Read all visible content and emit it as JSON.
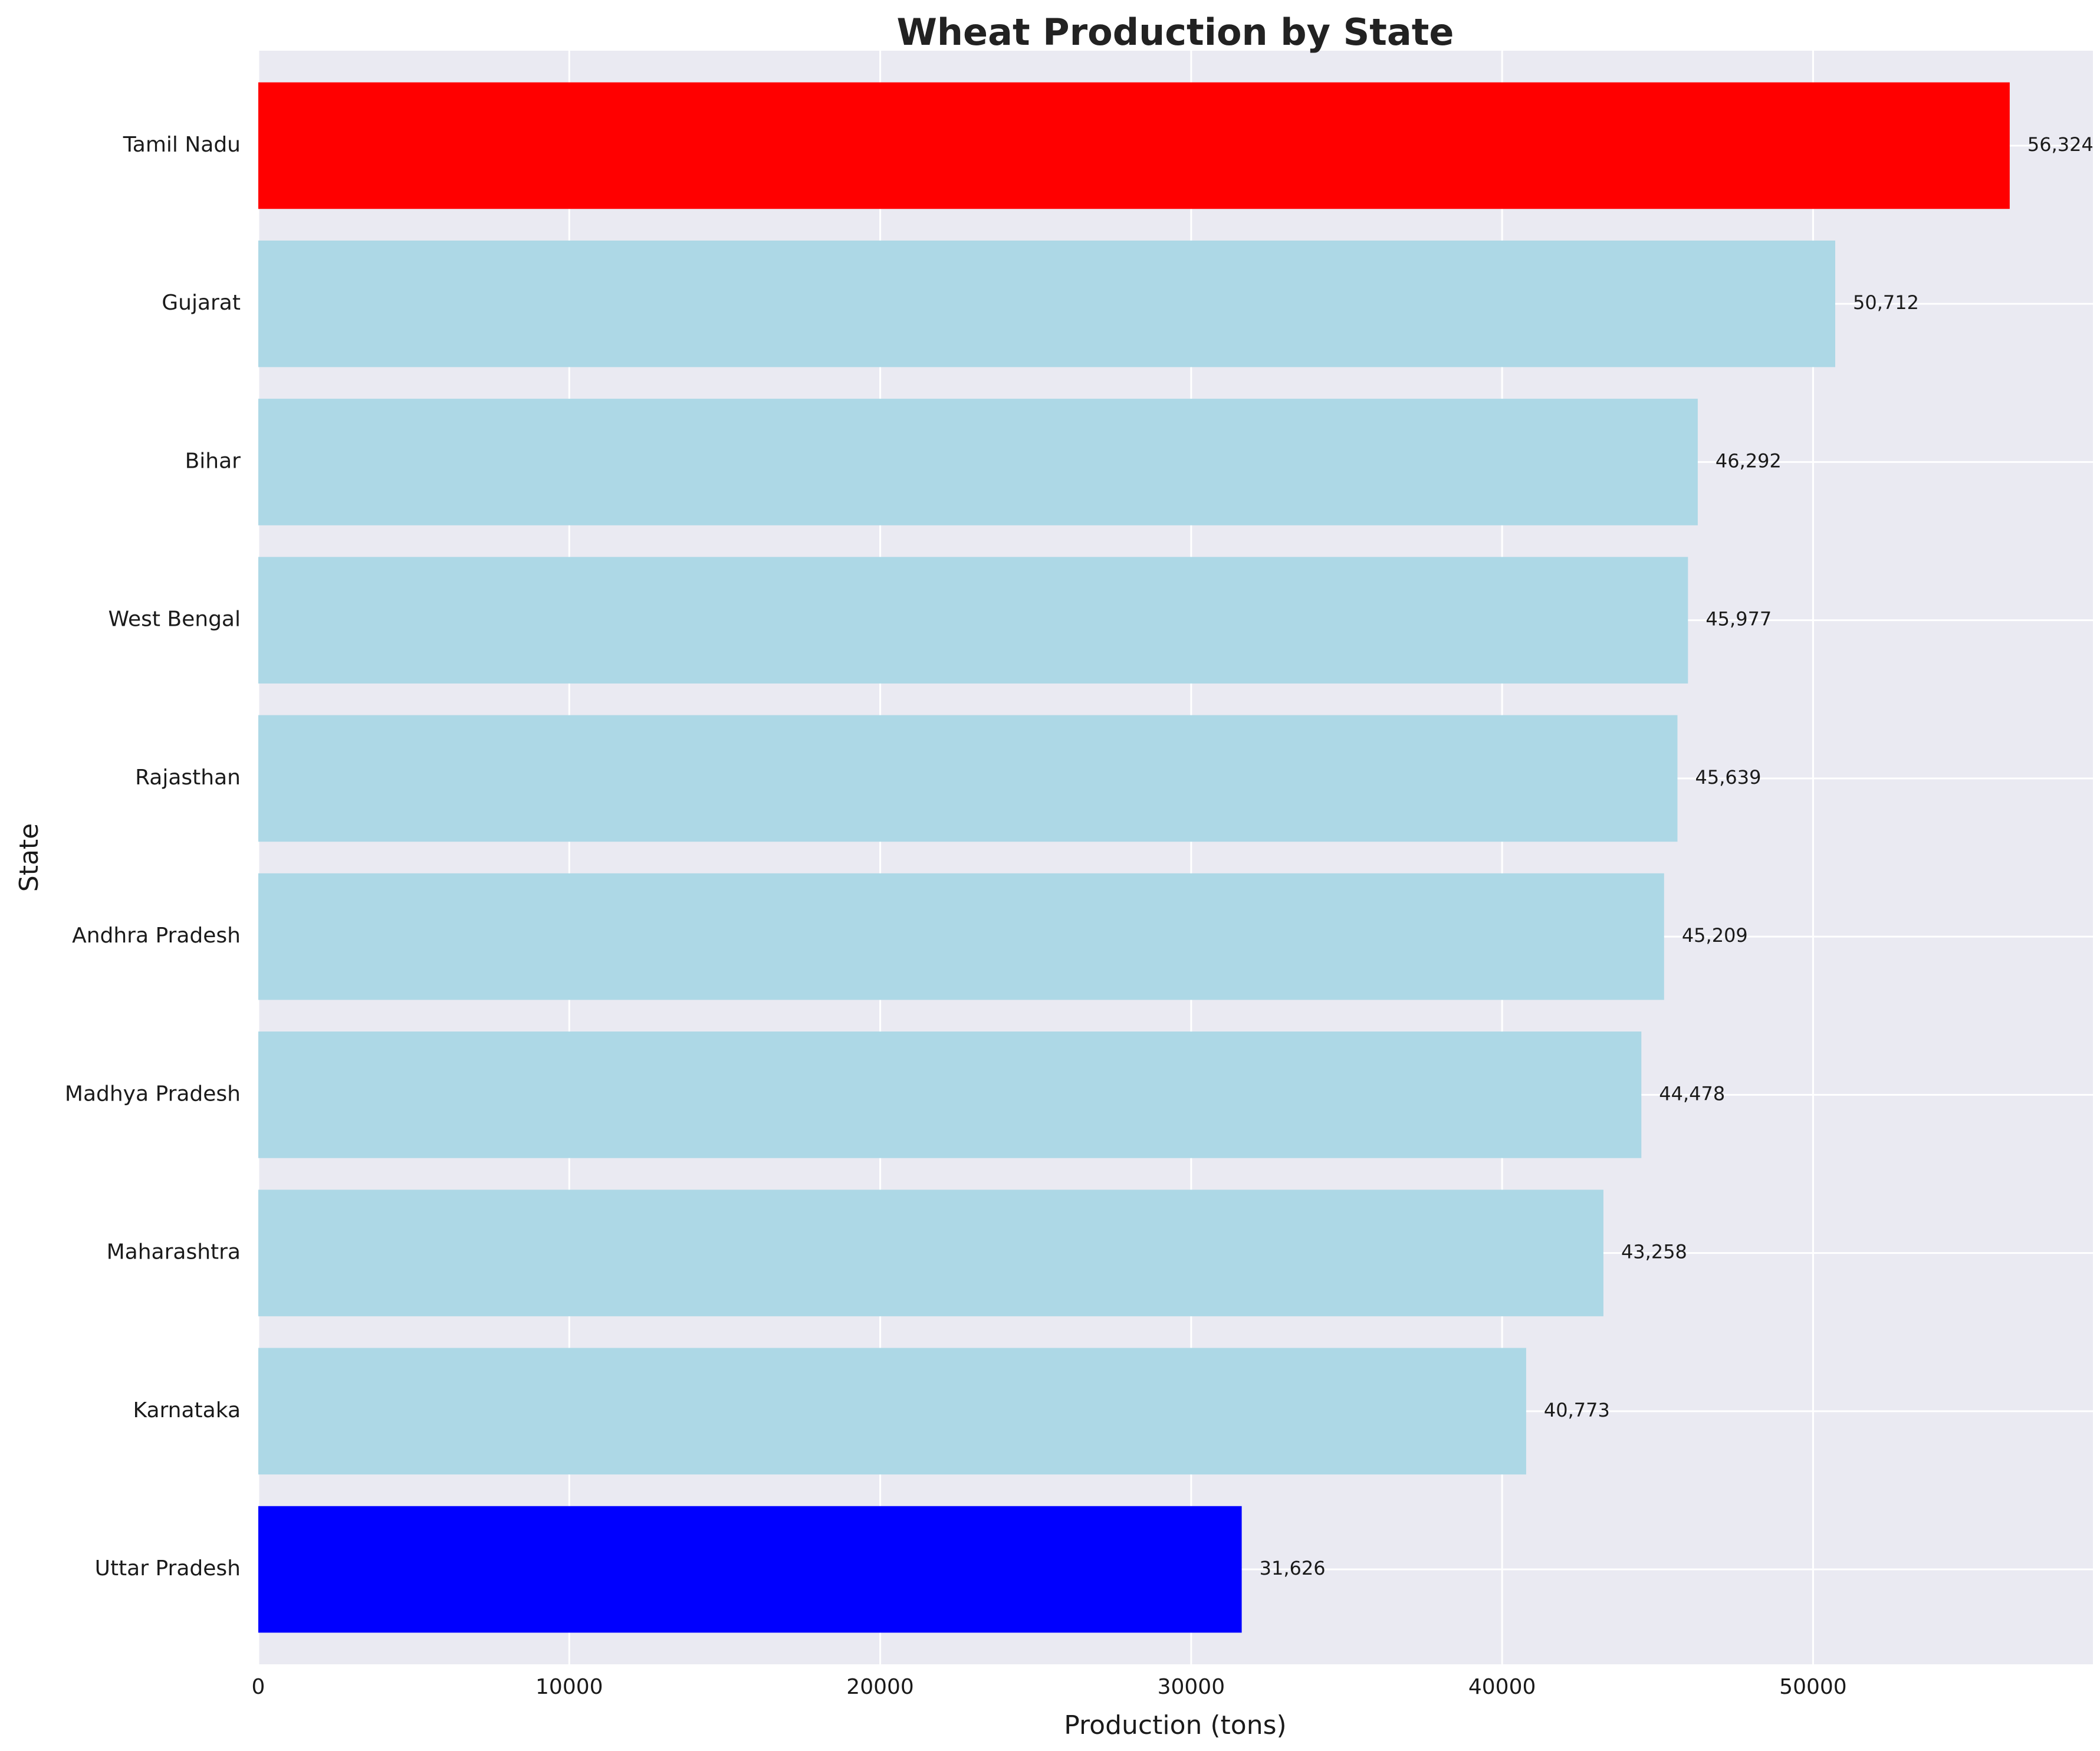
{
  "chart_data": {
    "type": "bar",
    "orientation": "horizontal",
    "title": "Wheat Production by State",
    "xlabel": "Production (tons)",
    "ylabel": "State",
    "xlim": [
      0,
      59000
    ],
    "xticks": [
      0,
      10000,
      20000,
      30000,
      40000,
      50000
    ],
    "grid": true,
    "categories": [
      "Tamil Nadu",
      "Gujarat",
      "Bihar",
      "West Bengal",
      "Rajasthan",
      "Andhra Pradesh",
      "Madhya Pradesh",
      "Maharashtra",
      "Karnataka",
      "Uttar Pradesh"
    ],
    "values": [
      56324,
      50712,
      46292,
      45977,
      45639,
      45209,
      44478,
      43258,
      40773,
      31626
    ],
    "value_labels": [
      "56,324",
      "50,712",
      "46,292",
      "45,977",
      "45,639",
      "45,209",
      "44,478",
      "43,258",
      "40,773",
      "31,626"
    ],
    "bar_colors": [
      "#ff0000",
      "#add8e6",
      "#add8e6",
      "#add8e6",
      "#add8e6",
      "#add8e6",
      "#add8e6",
      "#add8e6",
      "#add8e6",
      "#0000ff"
    ],
    "background_color": "#eaeaf2",
    "grid_color": "#ffffff"
  }
}
